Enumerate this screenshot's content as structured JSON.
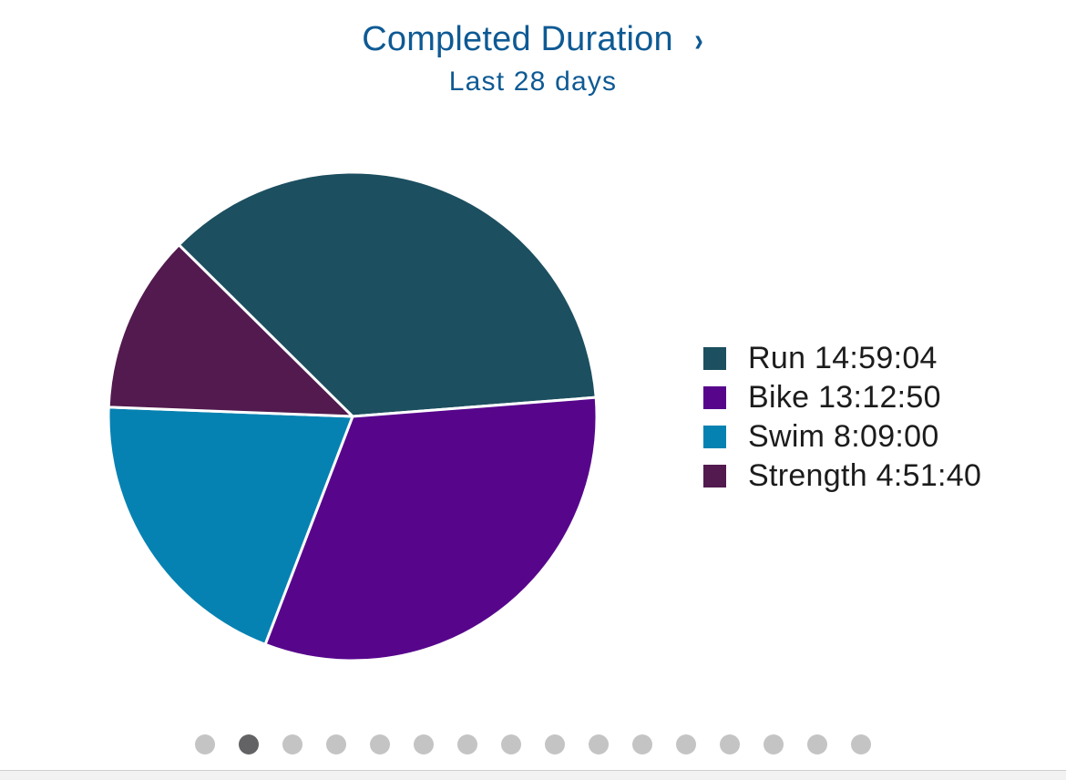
{
  "header": {
    "title": "Completed Duration",
    "chevron": "›",
    "subtitle": "Last 28 days"
  },
  "chart_data": {
    "type": "pie",
    "title": "Completed Duration",
    "subtitle": "Last 28 days",
    "legend_position": "right",
    "slices": [
      {
        "name": "Run",
        "label": "Run 14:59:04",
        "duration": "14:59:04",
        "seconds": 53944,
        "color": "#1c4f60"
      },
      {
        "name": "Bike",
        "label": "Bike 13:12:50",
        "duration": "13:12:50",
        "seconds": 47570,
        "color": "#57068c"
      },
      {
        "name": "Swim",
        "label": "Swim 8:09:00",
        "duration": "8:09:00",
        "seconds": 29340,
        "color": "#0682b2"
      },
      {
        "name": "Strength",
        "label": "Strength 4:51:40",
        "duration": "4:51:40",
        "seconds": 17500,
        "color": "#521a4e"
      }
    ]
  },
  "pager": {
    "count": 16,
    "active_index": 1
  }
}
